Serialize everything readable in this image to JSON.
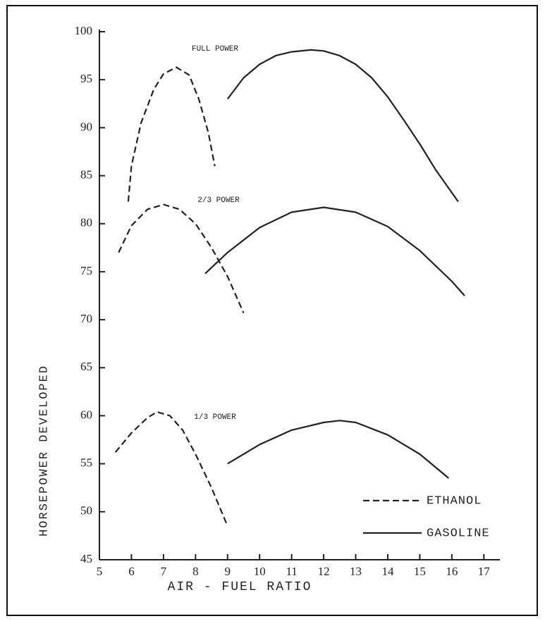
{
  "chart_data": {
    "type": "line",
    "x_label": "AIR - FUEL RATIO",
    "y_label": "HORSEPOWER DEVELOPED",
    "xlim": [
      5,
      17.5
    ],
    "ylim": [
      45,
      100
    ],
    "xticks": [
      5,
      6,
      7,
      8,
      9,
      10,
      11,
      12,
      13,
      14,
      15,
      16,
      17
    ],
    "yticks": [
      45,
      50,
      55,
      60,
      65,
      70,
      75,
      80,
      85,
      90,
      95,
      100
    ],
    "legend": "lower right",
    "annotations": [
      "FULL POWER",
      "2/3 POWER",
      "1/3 POWER"
    ],
    "series": [
      {
        "name": "ETHANOL",
        "color": "#222222",
        "dash": true,
        "x": [
          5.9,
          6.0,
          6.3,
          6.7,
          7.0,
          7.4,
          7.8,
          8.1,
          8.4,
          8.6,
          null,
          5.6,
          6.0,
          6.5,
          7.0,
          7.5,
          8.0,
          8.5,
          9.0,
          9.5,
          null,
          5.5,
          6.0,
          6.5,
          6.8,
          7.2,
          7.6,
          8.0,
          8.5,
          9.0
        ],
        "values": [
          82.3,
          86,
          90.5,
          94,
          95.6,
          96.3,
          95.5,
          93,
          89.5,
          86,
          null,
          77,
          79.8,
          81.5,
          82,
          81.5,
          80,
          77.5,
          74.5,
          70.7,
          null,
          56.2,
          58.2,
          59.8,
          60.4,
          60,
          58.5,
          56,
          52.5,
          48.5
        ]
      },
      {
        "name": "GASOLINE",
        "color": "#222222",
        "dash": false,
        "x": [
          9.0,
          9.5,
          10.0,
          10.5,
          11.0,
          11.6,
          12.0,
          12.5,
          13.0,
          13.5,
          14.0,
          14.5,
          15.0,
          15.5,
          16.2,
          null,
          8.3,
          9.0,
          10.0,
          11.0,
          12.0,
          13.0,
          14.0,
          15.0,
          16.0,
          16.4,
          null,
          9.0,
          10.0,
          11.0,
          12.0,
          12.5,
          13.0,
          14.0,
          15.0,
          15.9
        ],
        "values": [
          93,
          95.2,
          96.6,
          97.5,
          97.9,
          98.1,
          98,
          97.5,
          96.6,
          95.2,
          93.2,
          90.8,
          88.3,
          85.6,
          82.3,
          null,
          74.8,
          77,
          79.6,
          81.2,
          81.7,
          81.2,
          79.7,
          77.2,
          74,
          72.5,
          null,
          55,
          57,
          58.5,
          59.3,
          59.5,
          59.3,
          58,
          56,
          53.5
        ]
      }
    ]
  }
}
